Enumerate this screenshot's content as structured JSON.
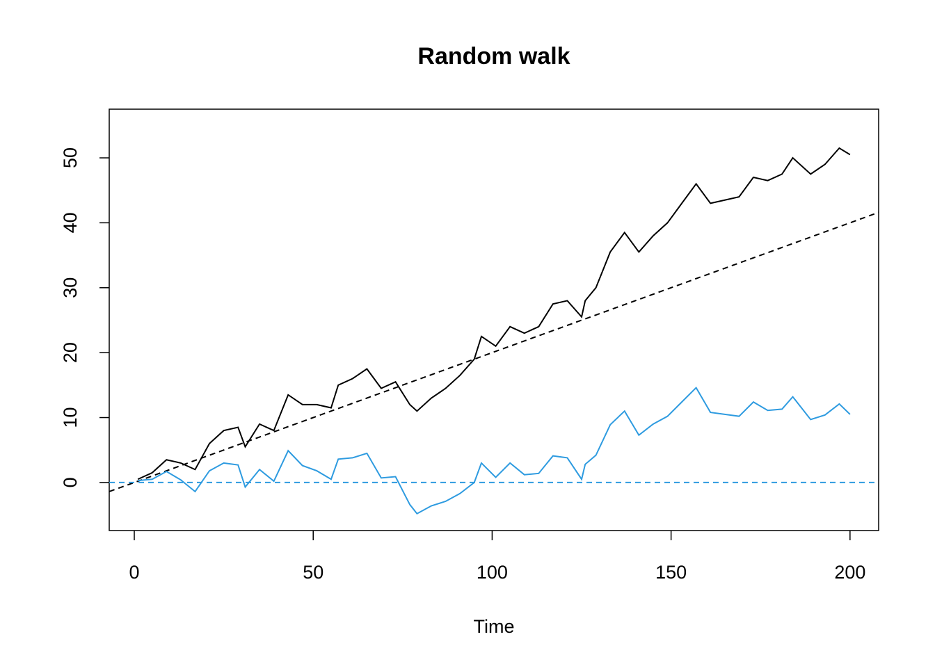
{
  "chart_data": {
    "type": "line",
    "title": "Random walk",
    "xlabel": "Time",
    "x": [
      1,
      5,
      9,
      13,
      17,
      21,
      25,
      29,
      31,
      35,
      39,
      43,
      47,
      51,
      55,
      57,
      61,
      65,
      69,
      73,
      77,
      79,
      83,
      87,
      91,
      95,
      97,
      101,
      105,
      109,
      113,
      117,
      121,
      125,
      126,
      129,
      133,
      137,
      141,
      145,
      149,
      153,
      157,
      161,
      165,
      169,
      173,
      177,
      181,
      184,
      189,
      193,
      197,
      200
    ],
    "series": [
      {
        "color": "#000000",
        "values": [
          0.5,
          1.5,
          3.5,
          3,
          2,
          6,
          8,
          8.5,
          5.5,
          9,
          8,
          13.5,
          12,
          12,
          11.5,
          15,
          16,
          17.5,
          14.5,
          15.5,
          12,
          11,
          13,
          14.5,
          16.5,
          19,
          22.5,
          21,
          24,
          23,
          24,
          27.5,
          28,
          25.5,
          28,
          30,
          35.5,
          38.5,
          35.5,
          38,
          40,
          43,
          46,
          43,
          43.5,
          44,
          47,
          46.5,
          47.5,
          50,
          47.5,
          49,
          51.5,
          50.5
        ]
      },
      {
        "color": "#2e9be0",
        "values": [
          0.3,
          0.5,
          1.7,
          0.4,
          -1.4,
          1.8,
          3,
          2.7,
          -0.7,
          2,
          0.2,
          4.9,
          2.6,
          1.8,
          0.5,
          3.6,
          3.8,
          4.5,
          0.7,
          0.9,
          -3.4,
          -4.8,
          -3.6,
          -2.9,
          -1.7,
          0,
          3,
          0.8,
          3,
          1.2,
          1.4,
          4.1,
          3.8,
          0.5,
          2.8,
          4.2,
          8.9,
          11,
          7.3,
          9,
          10.2,
          12.4,
          14.6,
          10.8,
          10.5,
          10.2,
          12.4,
          11.1,
          11.3,
          13.2,
          9.7,
          10.4,
          12.1,
          10.5
        ]
      }
    ],
    "ref_lines": [
      {
        "intercept": 0,
        "slope": 0.2,
        "color": "#000000",
        "dashed": true
      },
      {
        "intercept": 0,
        "slope": 0,
        "color": "#2e9be0",
        "dashed": true
      }
    ],
    "xlim": [
      -7,
      208
    ],
    "ylim": [
      -7.4,
      57.5
    ],
    "xticks": [
      0,
      50,
      100,
      150,
      200
    ],
    "yticks": [
      0,
      10,
      20,
      30,
      40,
      50
    ]
  }
}
